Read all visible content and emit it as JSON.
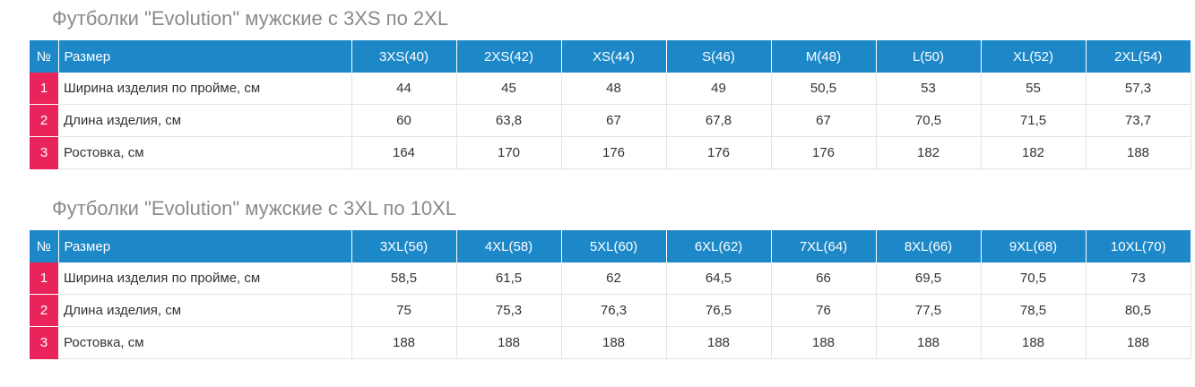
{
  "tables": [
    {
      "title": "Футболки \"Evolution\" мужские с 3XS по 2XL",
      "num_header": "№",
      "name_header": "Размер",
      "sizes": [
        "3XS(40)",
        "2XS(42)",
        "XS(44)",
        "S(46)",
        "M(48)",
        "L(50)",
        "XL(52)",
        "2XL(54)"
      ],
      "rows": [
        {
          "num": "1",
          "label": "Ширина изделия по пройме, см",
          "values": [
            "44",
            "45",
            "48",
            "49",
            "50,5",
            "53",
            "55",
            "57,3"
          ]
        },
        {
          "num": "2",
          "label": "Длина изделия, см",
          "values": [
            "60",
            "63,8",
            "67",
            "67,8",
            "67",
            "70,5",
            "71,5",
            "73,7"
          ]
        },
        {
          "num": "3",
          "label": "Ростовка, см",
          "values": [
            "164",
            "170",
            "176",
            "176",
            "176",
            "182",
            "182",
            "188"
          ]
        }
      ]
    },
    {
      "title": "Футболки \"Evolution\" мужские с 3XL по 10XL",
      "num_header": "№",
      "name_header": "Размер",
      "sizes": [
        "3XL(56)",
        "4XL(58)",
        "5XL(60)",
        "6XL(62)",
        "7XL(64)",
        "8XL(66)",
        "9XL(68)",
        "10XL(70)"
      ],
      "rows": [
        {
          "num": "1",
          "label": "Ширина изделия по пройме, см",
          "values": [
            "58,5",
            "61,5",
            "62",
            "64,5",
            "66",
            "69,5",
            "70,5",
            "73"
          ]
        },
        {
          "num": "2",
          "label": "Длина изделия, см",
          "values": [
            "75",
            "75,3",
            "76,3",
            "76,5",
            "76",
            "77,5",
            "78,5",
            "80,5"
          ]
        },
        {
          "num": "3",
          "label": "Ростовка, см",
          "values": [
            "188",
            "188",
            "188",
            "188",
            "188",
            "188",
            "188",
            "188"
          ]
        }
      ]
    }
  ],
  "colors": {
    "header_bg": "#1d88c8",
    "num_bg": "#e8245a",
    "title_text": "#8a8a8a"
  }
}
